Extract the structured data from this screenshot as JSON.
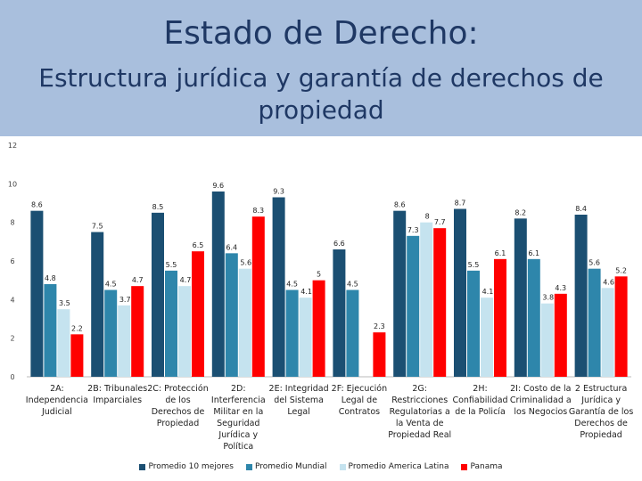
{
  "header": {
    "title": "Estado de Derecho:",
    "subtitle": "Estructura jurídica y garantía de derechos de propiedad"
  },
  "chart_data": {
    "type": "bar",
    "title": "Estado de Derecho:",
    "subtitle": "Estructura jurídica y garantía de derechos de propiedad",
    "categories": [
      "2A: Independencia Judicial",
      "2B: Tribunales Imparciales",
      "2C: Protección de los Derechos de Propiedad",
      "2D: Interferencia Militar en la Seguridad Jurídica y Política",
      "2E: Integridad del Sistema Legal",
      "2F: Ejecución Legal de Contratos",
      "2G: Restricciones Regulatorias a la Venta de Propiedad Real",
      "2H: Confiabilidad de la Policía",
      "2I: Costo de la Criminalidad a los Negocios",
      "2 Estructura Jurídica y Garantía de los Derechos de Propiedad"
    ],
    "series": [
      {
        "name": "Promedio 10 mejores",
        "color": "#1b4f72",
        "values": [
          8.6,
          7.5,
          8.5,
          9.6,
          9.3,
          6.6,
          8.6,
          8.7,
          8.2,
          8.4
        ]
      },
      {
        "name": "Promedio Mundial",
        "color": "#2e86ab",
        "values": [
          4.8,
          4.5,
          5.5,
          6.4,
          4.5,
          4.5,
          7.3,
          5.5,
          6.1,
          5.6
        ]
      },
      {
        "name": "Promedio America Latina",
        "color": "#c5e3ef",
        "values": [
          3.5,
          3.7,
          4.7,
          5.6,
          4.1,
          null,
          8.0,
          4.1,
          3.8,
          4.6
        ]
      },
      {
        "name": "Panama",
        "color": "#ff0000",
        "values": [
          2.2,
          4.7,
          6.5,
          8.3,
          5.0,
          2.3,
          7.7,
          6.1,
          4.3,
          5.2
        ]
      }
    ],
    "ylim": [
      0,
      12
    ],
    "yticks": [
      0,
      2,
      4,
      6,
      8,
      10,
      12
    ],
    "legend_position": "bottom",
    "grid": false
  }
}
